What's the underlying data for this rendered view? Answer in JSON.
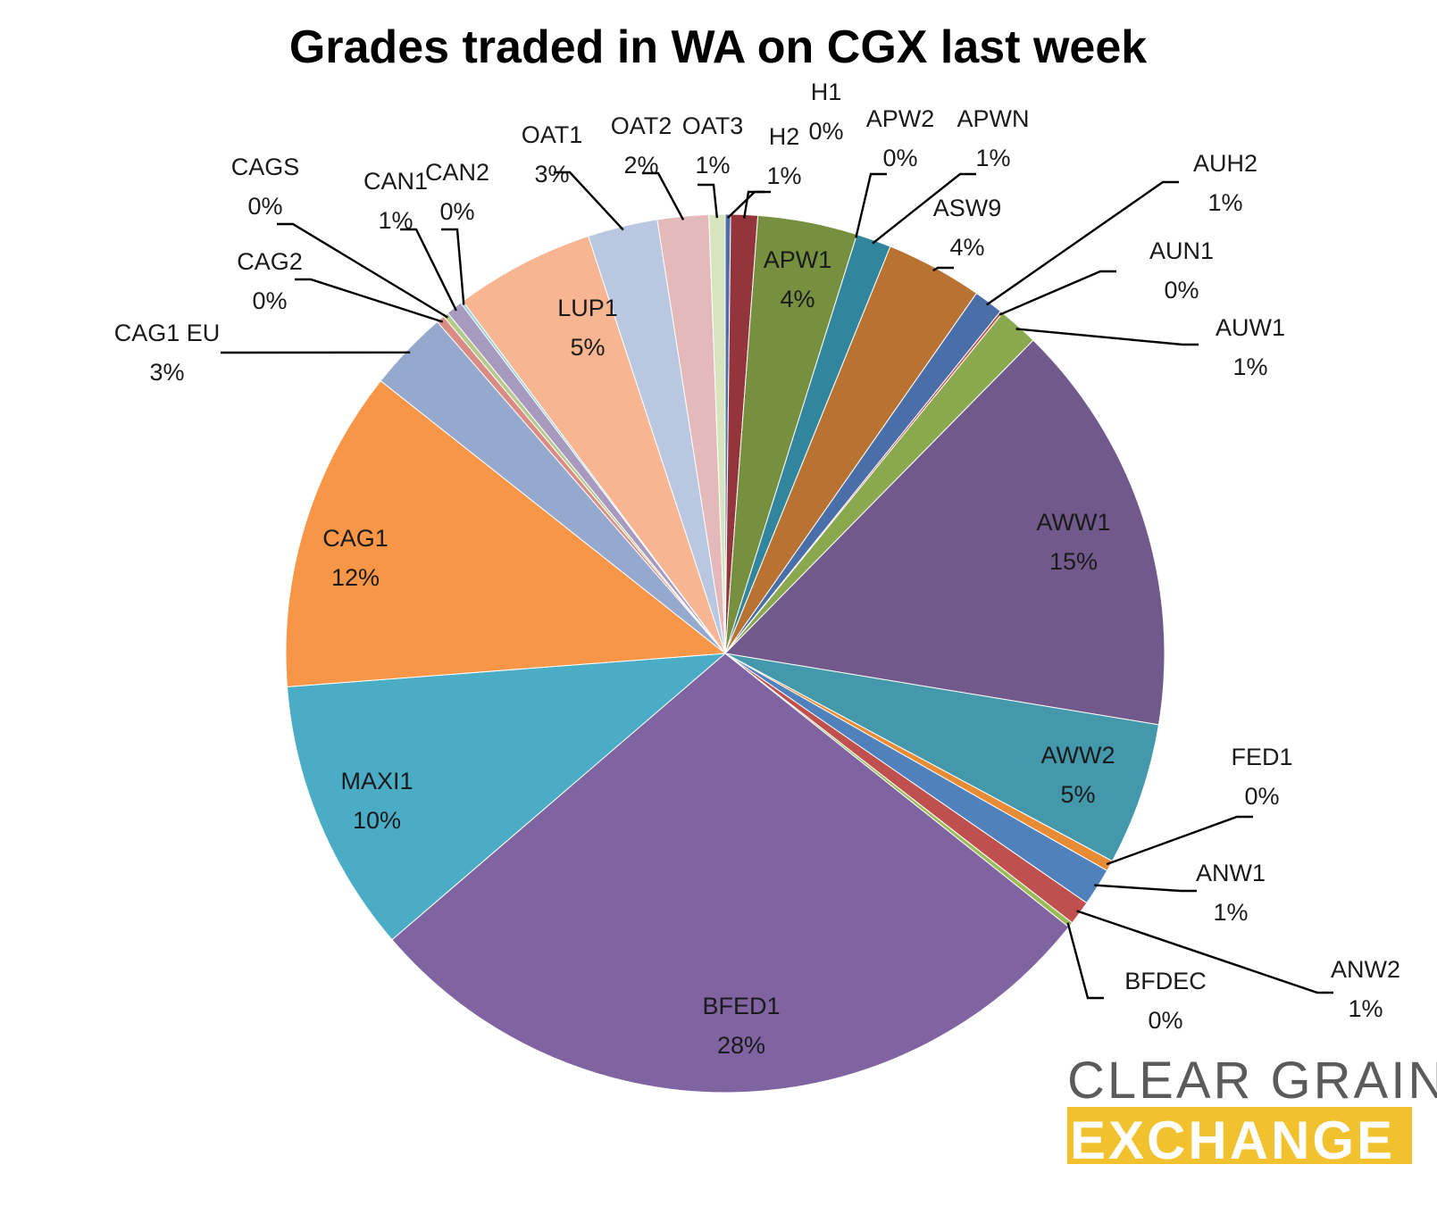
{
  "chart_data": {
    "type": "pie",
    "title": "Grades traded in WA on CGX last week",
    "slices": [
      {
        "label": "H1",
        "pct_text": "0%",
        "value": 0.2,
        "color": "#4f6fa8"
      },
      {
        "label": "H2",
        "pct_text": "1%",
        "value": 1.0,
        "color": "#93353b"
      },
      {
        "label": "APW1",
        "pct_text": "4%",
        "value": 3.7,
        "color": "#76903f"
      },
      {
        "label": "APW2",
        "pct_text": "0%",
        "value": 0.0,
        "color": "#5a4878"
      },
      {
        "label": "APWN",
        "pct_text": "1%",
        "value": 1.3,
        "color": "#31859c"
      },
      {
        "label": "ASW9",
        "pct_text": "4%",
        "value": 3.6,
        "color": "#b87333"
      },
      {
        "label": "AUH2",
        "pct_text": "1%",
        "value": 1.1,
        "color": "#4a6fa8"
      },
      {
        "label": "AUN1",
        "pct_text": "0%",
        "value": 0.1,
        "color": "#c0504d"
      },
      {
        "label": "AUW1",
        "pct_text": "1%",
        "value": 1.5,
        "color": "#8aa84e"
      },
      {
        "label": "AWW1",
        "pct_text": "15%",
        "value": 15.4,
        "color": "#72598c"
      },
      {
        "label": "AWW2",
        "pct_text": "5%",
        "value": 5.3,
        "color": "#4398ab"
      },
      {
        "label": "FED1",
        "pct_text": "0%",
        "value": 0.4,
        "color": "#e88b35"
      },
      {
        "label": "ANW1",
        "pct_text": "1%",
        "value": 1.4,
        "color": "#4f81bd"
      },
      {
        "label": "ANW2",
        "pct_text": "1%",
        "value": 0.9,
        "color": "#c0504d"
      },
      {
        "label": "BFDEC",
        "pct_text": "0%",
        "value": 0.2,
        "color": "#9bbb59"
      },
      {
        "label": "BFED1",
        "pct_text": "28%",
        "value": 28.3,
        "color": "#8064a2"
      },
      {
        "label": "MAXI1",
        "pct_text": "10%",
        "value": 10.2,
        "color": "#4bacc6"
      },
      {
        "label": "CAG1",
        "pct_text": "12%",
        "value": 12.0,
        "color": "#f79646"
      },
      {
        "label": "CAG1 EU",
        "pct_text": "3%",
        "value": 3.0,
        "color": "#95a9cf"
      },
      {
        "label": "CAG2",
        "pct_text": "0%",
        "value": 0.3,
        "color": "#d98b84"
      },
      {
        "label": "CAGS",
        "pct_text": "0%",
        "value": 0.2,
        "color": "#b5c98a"
      },
      {
        "label": "CAN1",
        "pct_text": "1%",
        "value": 0.6,
        "color": "#a899bf"
      },
      {
        "label": "CAN2",
        "pct_text": "0%",
        "value": 0.1,
        "color": "#92cddc"
      },
      {
        "label": "LUP1",
        "pct_text": "5%",
        "value": 5.2,
        "color": "#f7b592"
      },
      {
        "label": "OAT1",
        "pct_text": "3%",
        "value": 2.6,
        "color": "#b9c7e0"
      },
      {
        "label": "OAT2",
        "pct_text": "2%",
        "value": 1.9,
        "color": "#e3b9b9"
      },
      {
        "label": "OAT3",
        "pct_text": "1%",
        "value": 0.6,
        "color": "#d7e4bd"
      }
    ]
  },
  "logo": {
    "line1": "CLEAR GRAIN",
    "line2": "EXCHANGE",
    "accent_color": "#f2c12e",
    "text_color": "#5b5b5b"
  }
}
